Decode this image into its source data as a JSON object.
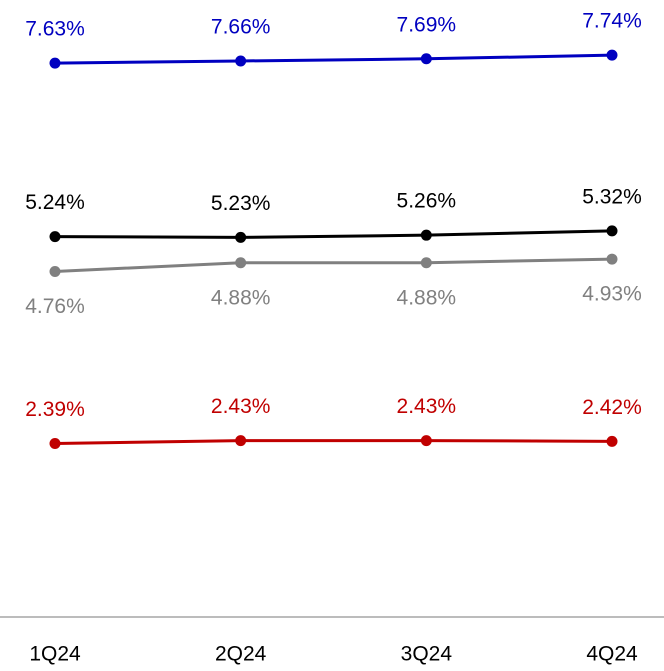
{
  "chart_data": {
    "type": "line",
    "categories": [
      "1Q24",
      "2Q24",
      "3Q24",
      "4Q24"
    ],
    "ylim": [
      0,
      8.5
    ],
    "series": [
      {
        "color": "#0000c0",
        "label_position": "above",
        "values": [
          7.63,
          7.66,
          7.69,
          7.74
        ],
        "value_labels": [
          "7.63%",
          "7.66%",
          "7.69%",
          "7.74%"
        ]
      },
      {
        "color": "#000000",
        "label_position": "above",
        "values": [
          5.24,
          5.23,
          5.26,
          5.32
        ],
        "value_labels": [
          "5.24%",
          "5.23%",
          "5.26%",
          "5.32%"
        ]
      },
      {
        "color": "#808080",
        "label_position": "below",
        "values": [
          4.76,
          4.88,
          4.88,
          4.93
        ],
        "value_labels": [
          "4.76%",
          "4.88%",
          "4.88%",
          "4.93%"
        ]
      },
      {
        "color": "#c00000",
        "label_position": "above",
        "values": [
          2.39,
          2.43,
          2.43,
          2.42
        ],
        "value_labels": [
          "2.39%",
          "2.43%",
          "2.43%",
          "2.42%"
        ]
      }
    ]
  }
}
